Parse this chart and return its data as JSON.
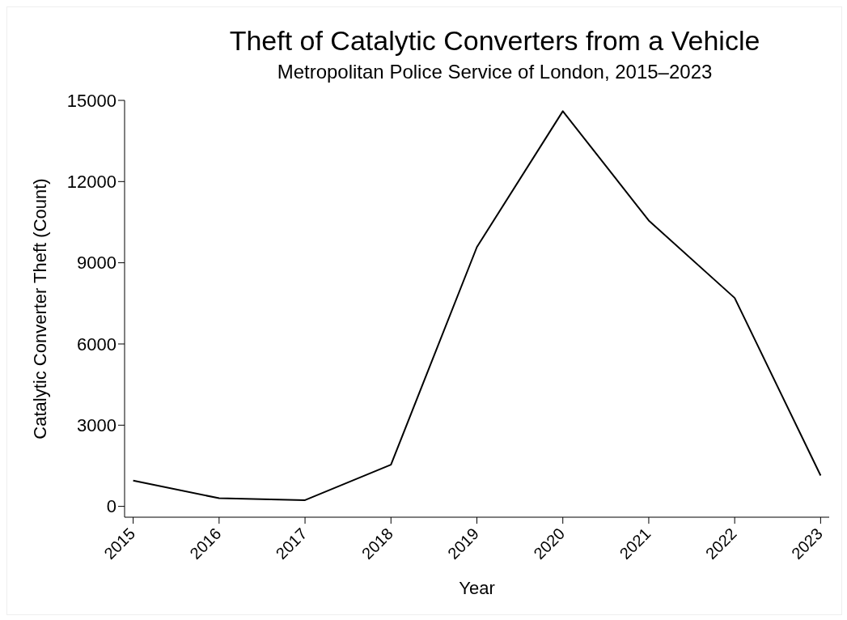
{
  "chart_data": {
    "type": "line",
    "title": "Theft of Catalytic Converters from a Vehicle",
    "subtitle": "Metropolitan Police Service of London, 2015–2023",
    "xlabel": "Year",
    "ylabel": "Catalytic Converter Theft (Count)",
    "x": [
      2015,
      2016,
      2017,
      2018,
      2019,
      2020,
      2021,
      2022,
      2023
    ],
    "series": [
      {
        "color": "#000000",
        "values": [
          950,
          300,
          230,
          1540,
          9580,
          14600,
          10560,
          7700,
          1140
        ]
      }
    ],
    "xlim": [
      2014.9,
      2023.1
    ],
    "xticks": [
      2015,
      2016,
      2017,
      2018,
      2019,
      2020,
      2021,
      2022,
      2023
    ],
    "ylim": [
      -400,
      15000
    ],
    "yticks": [
      0,
      3000,
      6000,
      9000,
      12000,
      15000
    ],
    "grid": false,
    "legend": false,
    "marker": "none",
    "line_style": "solid"
  }
}
